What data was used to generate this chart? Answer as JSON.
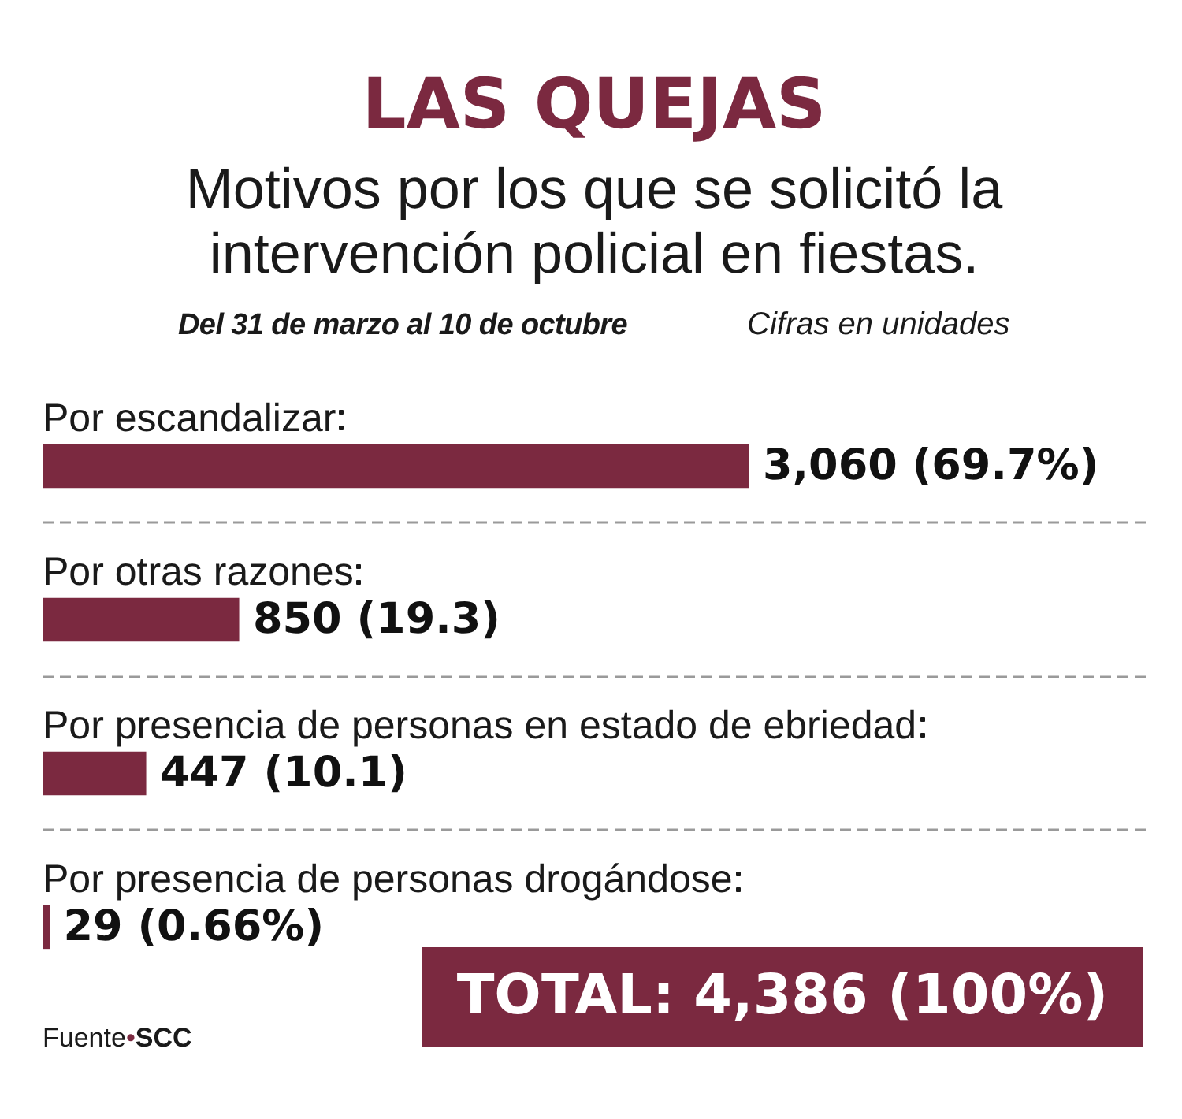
{
  "chart_data": {
    "type": "bar",
    "orientation": "horizontal",
    "title": "LAS QUEJAS",
    "subtitle": "Motivos por los que se solicitó la intervención policial en fiestas.",
    "annotations": [
      "Del 31 de marzo al 10 de octubre",
      "Cifras en unidades",
      "TOTAL: 4,386 (100%)",
      "Fuente•SCC"
    ],
    "categories": [
      "Por escandalizar",
      "Por otras razones",
      "Por presencia de personas en estado de ebriedad",
      "Por presencia de personas drogándose"
    ],
    "values": [
      3060,
      850,
      447,
      29
    ],
    "value_labels": [
      "3,060 (69.7%)",
      "850 (19.3)",
      "447 (10.1)",
      "29 (0.66%)"
    ],
    "color": "#7b2940",
    "grid": "y",
    "tick_labels": "y"
  }
}
